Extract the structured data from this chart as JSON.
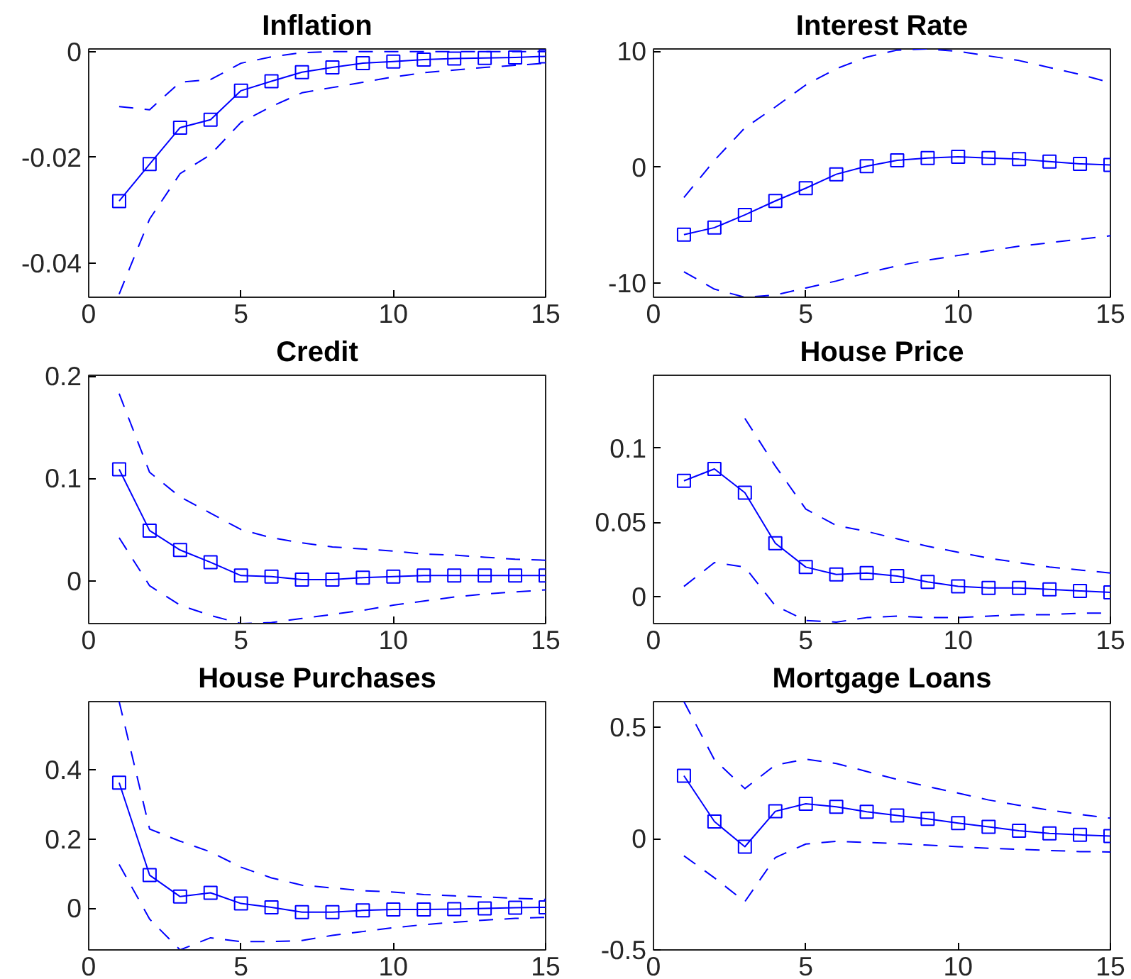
{
  "chart_data": [
    {
      "type": "line",
      "title": "Inflation",
      "x": [
        1,
        2,
        3,
        4,
        5,
        6,
        7,
        8,
        9,
        10,
        11,
        12,
        13,
        14,
        15
      ],
      "xlim": [
        0,
        15
      ],
      "xticks": [
        0,
        5,
        10,
        15
      ],
      "ylim": [
        -0.0465,
        0.0005
      ],
      "yticks": [
        -0.04,
        -0.02,
        0
      ],
      "grid": false,
      "series": [
        {
          "color": "#0000ff",
          "marker": "square",
          "line_style": "solid",
          "values": [
            -0.0283,
            -0.0213,
            -0.0144,
            -0.0129,
            -0.0074,
            -0.0056,
            -0.0039,
            -0.003,
            -0.0022,
            -0.0019,
            -0.0015,
            -0.0013,
            -0.0012,
            -0.0011,
            -0.0009
          ]
        },
        {
          "color": "#0000ff",
          "marker": "none",
          "line_style": "dashed",
          "values": [
            -0.0104,
            -0.011,
            -0.0058,
            -0.0053,
            -0.0022,
            -0.001,
            -0.0002,
            0.0,
            0.0,
            0.0,
            0.0,
            0.0,
            0.0,
            0.0,
            0.0
          ]
        },
        {
          "color": "#0000ff",
          "marker": "none",
          "line_style": "dashed",
          "values": [
            -0.0459,
            -0.0317,
            -0.0231,
            -0.0195,
            -0.0134,
            -0.0104,
            -0.0078,
            -0.0068,
            -0.0058,
            -0.0048,
            -0.004,
            -0.0035,
            -0.003,
            -0.0026,
            -0.0022
          ]
        }
      ]
    },
    {
      "type": "line",
      "title": "Interest Rate",
      "x": [
        1,
        2,
        3,
        4,
        5,
        6,
        7,
        8,
        9,
        10,
        11,
        12,
        13,
        14,
        15
      ],
      "xlim": [
        0,
        15
      ],
      "xticks": [
        0,
        5,
        10,
        15
      ],
      "ylim": [
        -11.2,
        10.2
      ],
      "yticks": [
        -10,
        0,
        10
      ],
      "grid": false,
      "series": [
        {
          "color": "#0000ff",
          "marker": "square",
          "line_style": "solid",
          "values": [
            -5.8,
            -5.2,
            -4.1,
            -2.9,
            -1.8,
            -0.6,
            0.1,
            0.6,
            0.8,
            0.9,
            0.8,
            0.7,
            0.5,
            0.3,
            0.2
          ]
        },
        {
          "color": "#0000ff",
          "marker": "none",
          "line_style": "dashed",
          "values": [
            -2.6,
            0.6,
            3.4,
            5.2,
            7.1,
            8.5,
            9.5,
            10.1,
            10.2,
            10.0,
            9.6,
            9.2,
            8.6,
            8.0,
            7.3
          ]
        },
        {
          "color": "#0000ff",
          "marker": "none",
          "line_style": "dashed",
          "values": [
            -9.0,
            -10.5,
            -11.2,
            -11.0,
            -10.4,
            -9.8,
            -9.1,
            -8.5,
            -8.0,
            -7.6,
            -7.2,
            -6.8,
            -6.5,
            -6.2,
            -5.9
          ]
        }
      ]
    },
    {
      "type": "line",
      "title": "Credit",
      "x": [
        1,
        2,
        3,
        4,
        5,
        6,
        7,
        8,
        9,
        10,
        11,
        12,
        13,
        14,
        15
      ],
      "xlim": [
        0,
        15
      ],
      "xticks": [
        0,
        5,
        10,
        15
      ],
      "ylim": [
        -0.042,
        0.201
      ],
      "yticks": [
        0,
        0.1,
        0.2
      ],
      "grid": false,
      "series": [
        {
          "color": "#0000ff",
          "marker": "square",
          "line_style": "solid",
          "values": [
            0.109,
            0.049,
            0.03,
            0.018,
            0.005,
            0.004,
            0.001,
            0.001,
            0.003,
            0.004,
            0.005,
            0.005,
            0.005,
            0.005,
            0.005
          ]
        },
        {
          "color": "#0000ff",
          "marker": "none",
          "line_style": "dashed",
          "values": [
            0.183,
            0.106,
            0.082,
            0.066,
            0.05,
            0.042,
            0.037,
            0.033,
            0.031,
            0.029,
            0.026,
            0.025,
            0.023,
            0.021,
            0.02
          ]
        },
        {
          "color": "#0000ff",
          "marker": "none",
          "line_style": "dashed",
          "values": [
            0.042,
            -0.005,
            -0.024,
            -0.034,
            -0.042,
            -0.041,
            -0.037,
            -0.033,
            -0.029,
            -0.024,
            -0.02,
            -0.016,
            -0.013,
            -0.011,
            -0.009
          ]
        }
      ]
    },
    {
      "type": "line",
      "title": "House Price",
      "x": [
        1,
        2,
        3,
        4,
        5,
        6,
        7,
        8,
        9,
        10,
        11,
        12,
        13,
        14,
        15
      ],
      "xlim": [
        0,
        15
      ],
      "xticks": [
        0,
        5,
        10,
        15
      ],
      "ylim": [
        -0.018,
        0.149
      ],
      "yticks": [
        0,
        0.05,
        0.1
      ],
      "grid": false,
      "series": [
        {
          "color": "#0000ff",
          "marker": "square",
          "line_style": "solid",
          "values": [
            0.078,
            0.086,
            0.07,
            0.036,
            0.02,
            0.015,
            0.016,
            0.014,
            0.01,
            0.007,
            0.006,
            0.006,
            0.005,
            0.004,
            0.003
          ]
        },
        {
          "color": "#0000ff",
          "marker": "none",
          "line_style": "dashed",
          "values": [
            null,
            null,
            0.12,
            0.088,
            0.059,
            0.048,
            0.044,
            0.039,
            0.034,
            0.03,
            0.026,
            0.023,
            0.02,
            0.018,
            0.016
          ]
        },
        {
          "color": "#0000ff",
          "marker": "none",
          "line_style": "dashed",
          "values": [
            0.007,
            0.023,
            0.02,
            -0.006,
            -0.016,
            -0.017,
            -0.014,
            -0.013,
            -0.014,
            -0.014,
            -0.013,
            -0.012,
            -0.012,
            -0.011,
            -0.011
          ]
        }
      ]
    },
    {
      "type": "line",
      "title": "House Purchases",
      "x": [
        1,
        2,
        3,
        4,
        5,
        6,
        7,
        8,
        9,
        10,
        11,
        12,
        13,
        14,
        15
      ],
      "xlim": [
        0,
        15
      ],
      "xticks": [
        0,
        5,
        10,
        15
      ],
      "ylim": [
        -0.12,
        0.597
      ],
      "yticks": [
        0,
        0.2,
        0.4
      ],
      "grid": false,
      "series": [
        {
          "color": "#0000ff",
          "marker": "square",
          "line_style": "solid",
          "values": [
            0.363,
            0.096,
            0.034,
            0.045,
            0.014,
            0.003,
            -0.011,
            -0.011,
            -0.006,
            -0.003,
            -0.003,
            -0.002,
            0.0,
            0.002,
            0.003
          ]
        },
        {
          "color": "#0000ff",
          "marker": "none",
          "line_style": "dashed",
          "values": [
            0.597,
            0.229,
            0.194,
            0.163,
            0.119,
            0.088,
            0.067,
            0.059,
            0.051,
            0.047,
            0.04,
            0.036,
            0.033,
            0.029,
            0.026
          ]
        },
        {
          "color": "#0000ff",
          "marker": "none",
          "line_style": "dashed",
          "values": [
            0.127,
            -0.031,
            -0.12,
            -0.085,
            -0.096,
            -0.096,
            -0.093,
            -0.078,
            -0.067,
            -0.056,
            -0.047,
            -0.04,
            -0.034,
            -0.029,
            -0.026
          ]
        }
      ]
    },
    {
      "type": "line",
      "title": "Mortgage Loans",
      "x": [
        1,
        2,
        3,
        4,
        5,
        6,
        7,
        8,
        9,
        10,
        11,
        12,
        13,
        14,
        15
      ],
      "xlim": [
        0,
        15
      ],
      "xticks": [
        0,
        5,
        10,
        15
      ],
      "ylim": [
        -0.5,
        0.616
      ],
      "yticks": [
        -0.5,
        0,
        0.5
      ],
      "grid": false,
      "series": [
        {
          "color": "#0000ff",
          "marker": "square",
          "line_style": "solid",
          "values": [
            0.283,
            0.077,
            -0.036,
            0.123,
            0.157,
            0.143,
            0.121,
            0.104,
            0.089,
            0.07,
            0.053,
            0.036,
            0.024,
            0.017,
            0.012
          ]
        },
        {
          "color": "#0000ff",
          "marker": "none",
          "line_style": "dashed",
          "values": [
            0.616,
            0.355,
            0.225,
            0.331,
            0.357,
            0.338,
            0.302,
            0.266,
            0.234,
            0.205,
            0.174,
            0.15,
            0.128,
            0.109,
            0.092
          ]
        },
        {
          "color": "#0000ff",
          "marker": "none",
          "line_style": "dashed",
          "values": [
            -0.077,
            -0.176,
            -0.283,
            -0.085,
            -0.024,
            -0.012,
            -0.017,
            -0.022,
            -0.029,
            -0.036,
            -0.043,
            -0.048,
            -0.053,
            -0.058,
            -0.06
          ]
        }
      ]
    }
  ]
}
